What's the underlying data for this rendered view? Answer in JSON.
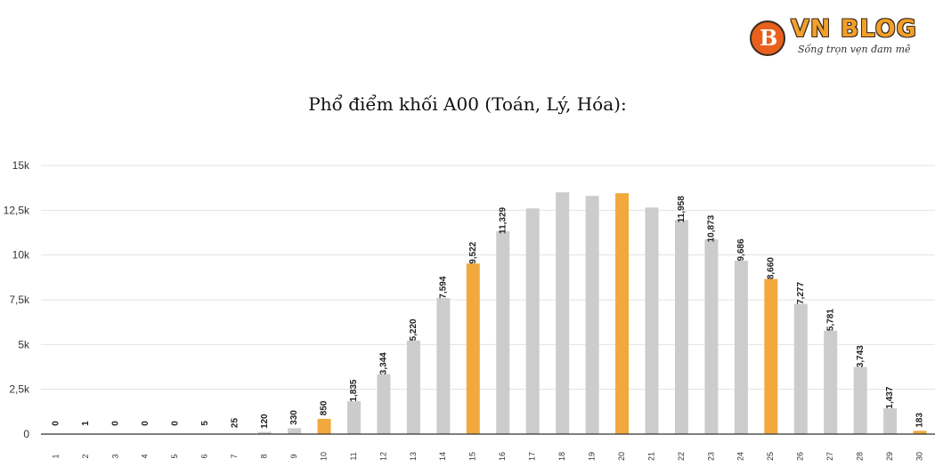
{
  "logo": {
    "badge_letter": "B",
    "name": "VN BLOG",
    "tagline": "Sống trọn vẹn đam mê"
  },
  "chart_data": {
    "type": "bar",
    "title": "Phổ điểm khối A00 (Toán, Lý, Hóa):",
    "xlabel": "",
    "ylabel": "",
    "ylim": [
      0,
      15000
    ],
    "yticks": [
      0,
      2500,
      5000,
      7500,
      10000,
      12500,
      15000
    ],
    "ytick_labels": [
      "0",
      "2,5k",
      "5k",
      "7,5k",
      "10k",
      "12,5k",
      "15k"
    ],
    "grid": true,
    "colors": {
      "default": "#cccccc",
      "highlight": "#f1a83c"
    },
    "categories": [
      "1",
      "2",
      "3",
      "4",
      "5",
      "6",
      "7",
      "8",
      "9",
      "10",
      "11",
      "12",
      "13",
      "14",
      "15",
      "16",
      "17",
      "18",
      "19",
      "20",
      "21",
      "22",
      "23",
      "24",
      "25",
      "26",
      "27",
      "28",
      "29",
      "30"
    ],
    "values": [
      0,
      1,
      0,
      0,
      0,
      5,
      25,
      120,
      330,
      850,
      1835,
      3344,
      5220,
      7594,
      9522,
      11329,
      12600,
      13500,
      13300,
      13450,
      12650,
      11958,
      10873,
      9686,
      8660,
      7277,
      5781,
      3743,
      1437,
      183
    ],
    "data_labels": [
      "0",
      "1",
      "0",
      "0",
      "0",
      "5",
      "25",
      "120",
      "330",
      "850",
      "1,835",
      "3,344",
      "5,220",
      "7,594",
      "9,522",
      "11,329",
      "",
      "",
      "",
      "",
      "",
      "11,958",
      "10,873",
      "9,686",
      "8,660",
      "7,277",
      "5,781",
      "3,743",
      "1,437",
      "183"
    ],
    "highlighted": [
      false,
      false,
      false,
      false,
      false,
      false,
      false,
      false,
      false,
      true,
      false,
      false,
      false,
      false,
      true,
      false,
      false,
      false,
      false,
      true,
      false,
      false,
      false,
      false,
      true,
      false,
      false,
      false,
      false,
      true
    ]
  }
}
